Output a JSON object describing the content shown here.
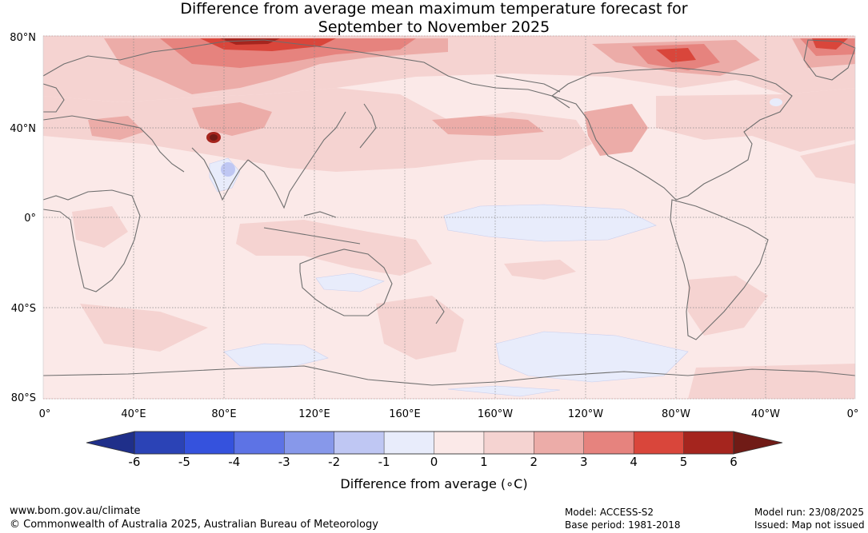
{
  "title_line1": "Difference from average mean maximum temperature forecast for",
  "title_line2": "September to November 2025",
  "lat_labels": [
    "80°N",
    "40°N",
    "0°",
    "40°S",
    "80°S"
  ],
  "lon_labels": [
    "0°",
    "40°E",
    "80°E",
    "120°E",
    "160°E",
    "160°W",
    "120°W",
    "80°W",
    "40°W",
    "0°"
  ],
  "colorbar": {
    "label": "Difference from average (∘C)",
    "ticks": [
      "-6",
      "-5",
      "-4",
      "-3",
      "-2",
      "-1",
      "0",
      "1",
      "2",
      "3",
      "4",
      "5",
      "6"
    ],
    "colors": [
      "#1f2f8a",
      "#2b43b6",
      "#3552dd",
      "#5d73e5",
      "#8798ea",
      "#bfc7f3",
      "#e8ecfb",
      "#fbe9e8",
      "#f5d3d1",
      "#ecaca8",
      "#e6837e",
      "#d9463b",
      "#a5251e",
      "#701b16"
    ]
  },
  "footer": {
    "left_line1": "www.bom.gov.au/climate",
    "left_line2": "© Commonwealth of Australia 2025, Australian Bureau of Meteorology",
    "model": "Model: ACCESS-S2",
    "base_period": "Base period: 1981-2018",
    "model_run": "Model run: 23/08/2025",
    "issued": "Issued: Map not issued"
  }
}
